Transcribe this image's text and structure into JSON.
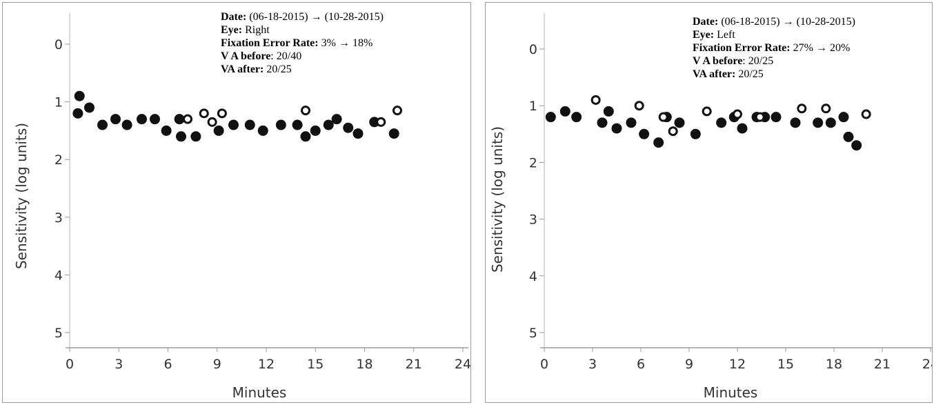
{
  "chart_data": [
    {
      "type": "scatter",
      "title": "",
      "xlabel": "Minutes",
      "ylabel": "Sensitivity (log units)",
      "xlim": [
        0,
        24
      ],
      "ylim": [
        0,
        5.3
      ],
      "y_inverted": true,
      "xticks": [
        "0",
        "3",
        "6",
        "9",
        "12",
        "15",
        "18",
        "21",
        "24"
      ],
      "yticks": [
        "0",
        "1",
        "2",
        "3",
        "4",
        "5"
      ],
      "info": {
        "date_label": "Date:",
        "date_value": "(06-18-2015) → (10-28-2015)",
        "eye_label": "Eye:",
        "eye_value": "Right",
        "fer_label": "Fixation Error Rate:",
        "fer_value": "3% → 18%",
        "vab_label": "V A before",
        "vab_value": ": 20/40",
        "vaa_label": "VA after:",
        "vaa_value": "20/25"
      },
      "series": [
        {
          "marker": "filled",
          "x": [
            0.5,
            0.6,
            1.2,
            2.0,
            2.8,
            3.5,
            4.4,
            5.2,
            5.9,
            6.7,
            6.8,
            7.7,
            9.1,
            10.0,
            11.0,
            11.8,
            12.9,
            13.9,
            14.4,
            15.0,
            15.8,
            16.3,
            17.0,
            17.6,
            18.6,
            19.8
          ],
          "y": [
            1.2,
            0.9,
            1.1,
            1.4,
            1.3,
            1.4,
            1.3,
            1.3,
            1.5,
            1.3,
            1.6,
            1.6,
            1.5,
            1.4,
            1.4,
            1.5,
            1.4,
            1.4,
            1.6,
            1.5,
            1.4,
            1.3,
            1.45,
            1.55,
            1.35,
            1.55
          ]
        },
        {
          "marker": "open",
          "x": [
            7.2,
            8.2,
            8.7,
            9.3,
            14.4,
            19.0,
            20.0
          ],
          "y": [
            1.3,
            1.2,
            1.35,
            1.2,
            1.15,
            1.35,
            1.15
          ]
        }
      ]
    },
    {
      "type": "scatter",
      "title": "",
      "xlabel": "Minutes",
      "ylabel": "Sensitivity (log units)",
      "xlim": [
        0,
        24
      ],
      "ylim": [
        0,
        5.3
      ],
      "y_inverted": true,
      "xticks": [
        "0",
        "3",
        "6",
        "9",
        "12",
        "15",
        "18",
        "21",
        "24"
      ],
      "yticks": [
        "0",
        "1",
        "2",
        "3",
        "4",
        "5"
      ],
      "info": {
        "date_label": "Date:",
        "date_value": "(06-18-2015) → (10-28-2015)",
        "eye_label": "Eye:",
        "eye_value": "Left",
        "fer_label": "Fixation Error Rate:",
        "fer_value": "27% → 20%",
        "vab_label": "V A before",
        "vab_value": ": 20/25",
        "vaa_label": "VA after:",
        "vaa_value": "20/25"
      },
      "series": [
        {
          "marker": "filled",
          "x": [
            0.4,
            1.3,
            2.0,
            3.6,
            4.0,
            4.5,
            5.4,
            6.2,
            7.1,
            7.6,
            8.4,
            9.4,
            11.0,
            11.8,
            12.3,
            13.2,
            13.7,
            14.4,
            15.6,
            17.0,
            17.8,
            18.6,
            18.9,
            19.4
          ],
          "y": [
            1.2,
            1.1,
            1.2,
            1.3,
            1.1,
            1.4,
            1.3,
            1.5,
            1.65,
            1.2,
            1.3,
            1.5,
            1.3,
            1.2,
            1.4,
            1.2,
            1.2,
            1.2,
            1.3,
            1.3,
            1.3,
            1.2,
            1.55,
            1.7
          ]
        },
        {
          "marker": "open",
          "x": [
            3.2,
            5.9,
            7.4,
            8.0,
            10.1,
            12.0,
            13.4,
            16.0,
            17.5,
            20.0
          ],
          "y": [
            0.9,
            1.0,
            1.2,
            1.45,
            1.1,
            1.15,
            1.2,
            1.05,
            1.05,
            1.15
          ]
        }
      ]
    }
  ]
}
